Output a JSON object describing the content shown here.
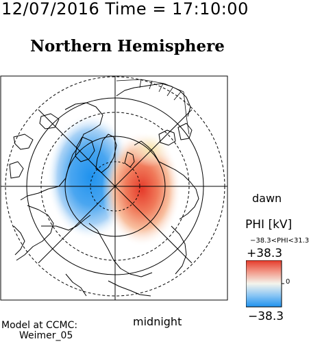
{
  "header": {
    "datetime": "12/07/2016 Time = 17:10:00"
  },
  "map": {
    "title": "Northern Hemisphere",
    "dawn_label": "dawn",
    "midnight_label": "midnight"
  },
  "legend": {
    "title": "PHI [kV]",
    "range_text": "−38.3<PHI<31.3",
    "max_label": "+38.3",
    "zero_label": "0",
    "min_label": "−38.3",
    "colors": {
      "high": "#e53a2a",
      "mid": "#f4f4ec",
      "low": "#1f92ee"
    }
  },
  "credit": {
    "line1": "Model at CCMC:",
    "line2": "Weimer_05"
  }
}
